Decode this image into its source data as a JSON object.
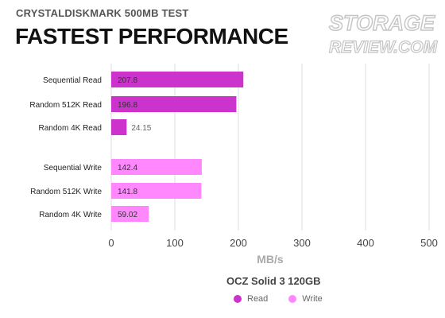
{
  "header": {
    "subtitle": "CRYSTALDISKMARK 500MB TEST",
    "title": "FASTEST PERFORMANCE"
  },
  "logo": {
    "line1": "STORAGE",
    "line2": "REVIEW.COM",
    "color": "#c8c8c8"
  },
  "chart_data": {
    "type": "bar",
    "orientation": "horizontal",
    "categories": [
      "Sequential Read",
      "Random 512K Read",
      "Random 4K Read",
      "Sequential Write",
      "Random 512K Write",
      "Random 4K Write"
    ],
    "values": [
      207.8,
      196.8,
      24.15,
      142.4,
      141.8,
      59.02
    ],
    "value_labels": [
      "207.8",
      "196.8",
      "24.15",
      "142.4",
      "141.8",
      "59.02"
    ],
    "bar_colors": [
      "#cc33cc",
      "#cc33cc",
      "#cc33cc",
      "#ff88ff",
      "#ff88ff",
      "#ff88ff"
    ],
    "xlabel": "MB/s",
    "xlim": [
      0,
      500
    ],
    "xticks": [
      0,
      100,
      200,
      300,
      400,
      500
    ],
    "grid": "vertical"
  },
  "legend": {
    "title": "OCZ Solid 3 120GB",
    "items": [
      {
        "label": "Read",
        "color": "#cc33cc"
      },
      {
        "label": "Write",
        "color": "#ff88ff"
      }
    ]
  }
}
